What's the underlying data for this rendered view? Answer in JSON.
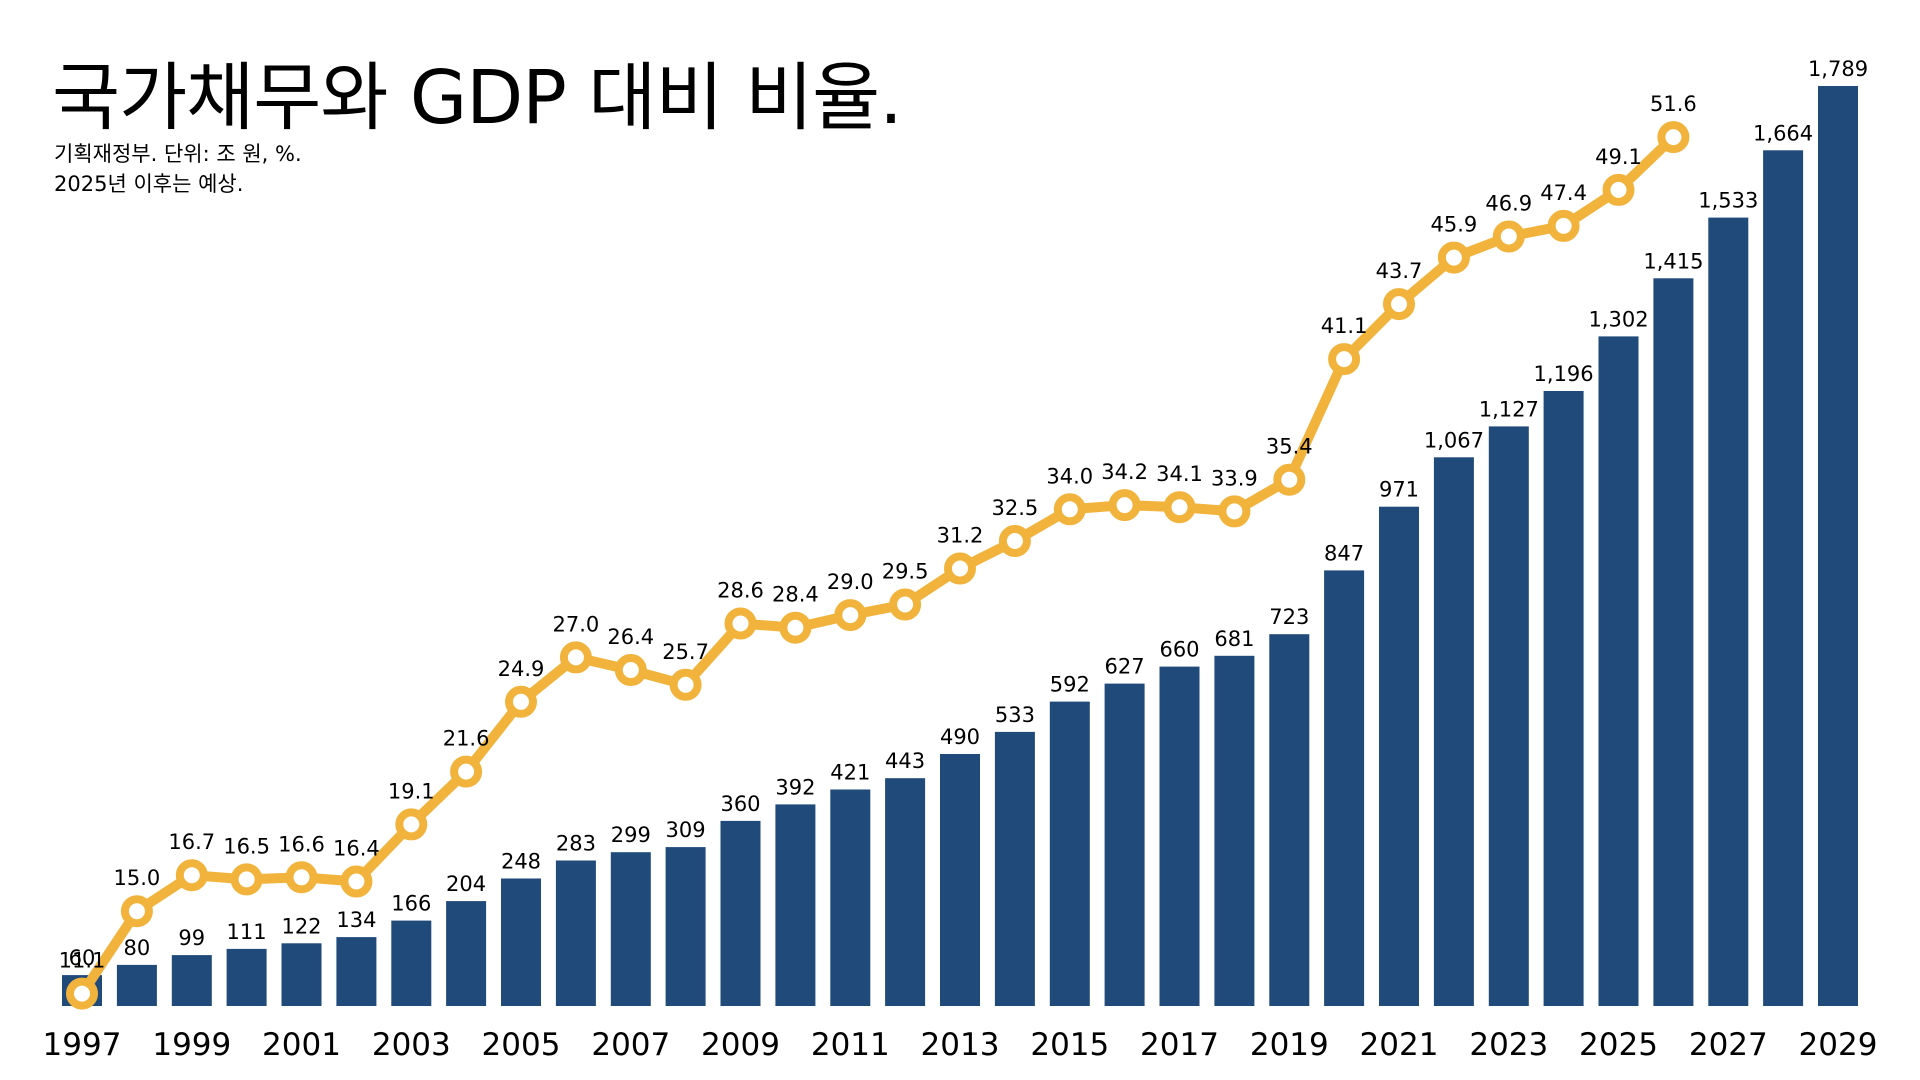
{
  "title": "국가채무와 GDP 대비 비율.",
  "source": "기획재정부. 단위: 조 원, %.",
  "note": "2025년 이후는 예상.",
  "colors": {
    "bar": "#1f4a7a",
    "line": "#f1b33b",
    "marker_fill": "#ffffff",
    "text": "#000000"
  },
  "chart_data": {
    "type": "bar",
    "title": "국가채무와 GDP 대비 비율.",
    "xlabel": "",
    "ylabel": "",
    "grid": false,
    "legend": "none",
    "x_tick_labels": [
      "1997",
      "1999",
      "2001",
      "2003",
      "2005",
      "2007",
      "2009",
      "2011",
      "2013",
      "2015",
      "2017",
      "2019",
      "2021",
      "2023",
      "2025",
      "2027",
      "2029"
    ],
    "categories": [
      "1997",
      "1998",
      "1999",
      "2000",
      "2001",
      "2002",
      "2003",
      "2004",
      "2005",
      "2006",
      "2007",
      "2008",
      "2009",
      "2010",
      "2011",
      "2012",
      "2013",
      "2014",
      "2015",
      "2016",
      "2017",
      "2018",
      "2019",
      "2020",
      "2021",
      "2022",
      "2023",
      "2024",
      "2025",
      "2026",
      "2027",
      "2028",
      "2029"
    ],
    "series": [
      {
        "type": "bar",
        "unit": "조 원",
        "ylim": [
          0,
          1850
        ],
        "values": [
          60,
          80,
          99,
          111,
          122,
          134,
          166,
          204,
          248,
          283,
          299,
          309,
          360,
          392,
          421,
          443,
          490,
          533,
          592,
          627,
          660,
          681,
          723,
          847,
          971,
          1067,
          1127,
          1196,
          1302,
          1415,
          1533,
          1664,
          1789
        ],
        "labels": [
          "60",
          "80",
          "99",
          "111",
          "122",
          "134",
          "166",
          "204",
          "248",
          "283",
          "299",
          "309",
          "360",
          "392",
          "421",
          "443",
          "490",
          "533",
          "592",
          "627",
          "660",
          "681",
          "723",
          "847",
          "971",
          "1,067",
          "1,127",
          "1,196",
          "1,302",
          "1,415",
          "1,533",
          "1,664",
          "1,789"
        ]
      },
      {
        "type": "line",
        "unit": "%",
        "ylim": [
          0,
          60
        ],
        "values": [
          11.1,
          15.0,
          16.7,
          16.5,
          16.6,
          16.4,
          19.1,
          21.6,
          24.9,
          27.0,
          26.4,
          25.7,
          28.6,
          28.4,
          29.0,
          29.5,
          31.2,
          32.5,
          34.0,
          34.2,
          34.1,
          33.9,
          35.4,
          41.1,
          43.7,
          45.9,
          46.9,
          47.4,
          49.1,
          51.6,
          null,
          null,
          null
        ],
        "labels": [
          "11.1",
          "15.0",
          "16.7",
          "16.5",
          "16.6",
          "16.4",
          "19.1",
          "21.6",
          "24.9",
          "27.0",
          "26.4",
          "25.7",
          "28.6",
          "28.4",
          "29.0",
          "29.5",
          "31.2",
          "32.5",
          "34.0",
          "34.2",
          "34.1",
          "33.9",
          "35.4",
          "41.1",
          "43.7",
          "45.9",
          "46.9",
          "47.4",
          "49.1",
          "51.6",
          null,
          null,
          null
        ]
      }
    ]
  }
}
